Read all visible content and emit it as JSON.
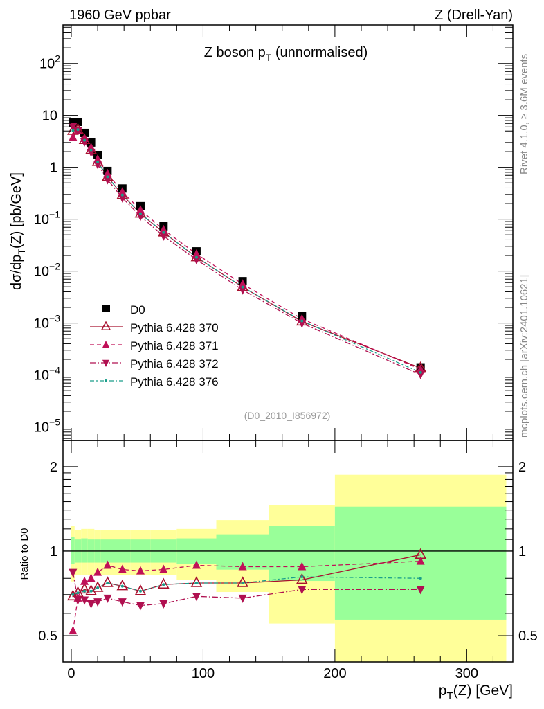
{
  "header": {
    "left": "1960 GeV ppbar",
    "right": "Z (Drell-Yan)"
  },
  "side_text": {
    "rivet": "Rivet 4.1.0, ≥ 3.6M events",
    "mcplots": "mcplots.cern.ch [arXiv:2401.10621]"
  },
  "watermark": "(D0_2010_I856972)",
  "colors": {
    "data": "#000000",
    "p370": "#a8102e",
    "p371": "#c01058",
    "p372": "#b01050",
    "p376": "#1a9e8a",
    "band_total": "#ffff99",
    "band_stat": "#99ff99"
  },
  "chart_data": [
    {
      "type": "line",
      "panel": "main",
      "title": {
        "main": "Z boson p",
        "sub": "T",
        "rest": " (unnormalised)"
      },
      "ylabel": {
        "a": "dσ/dp",
        "sub": "T",
        "b": "(Z) [pb/GeV]"
      },
      "yscale": "log",
      "ylim": [
        5.5e-06,
        553
      ],
      "xlim": [
        -6.3,
        335
      ],
      "yticks": [
        {
          "v": 1e-05,
          "base": "10",
          "exp": "−5"
        },
        {
          "v": 0.0001,
          "base": "10",
          "exp": "−4"
        },
        {
          "v": 0.001,
          "base": "10",
          "exp": "−3"
        },
        {
          "v": 0.01,
          "base": "10",
          "exp": "−2"
        },
        {
          "v": 0.1,
          "base": "10",
          "exp": "−1"
        },
        {
          "v": 1,
          "base": "1",
          "exp": ""
        },
        {
          "v": 10,
          "base": "10",
          "exp": ""
        },
        {
          "v": 100,
          "base": "10",
          "exp": "2"
        }
      ],
      "legend_position": "lower-left",
      "x": [
        1.25,
        5,
        10,
        15,
        20,
        27.5,
        38.75,
        52.5,
        70,
        95,
        130,
        175,
        265
      ],
      "series": [
        {
          "key": "d0",
          "name": "D0",
          "style": "square",
          "values": [
            7.3,
            7.5,
            4.6,
            3.0,
            1.72,
            0.85,
            0.39,
            0.178,
            0.073,
            0.024,
            0.0064,
            0.00136,
            0.00014
          ]
        },
        {
          "key": "p370",
          "name": "Pythia 6.428 370",
          "style": "open-up",
          "dash": "",
          "values": [
            5.04,
            5.33,
            3.36,
            2.16,
            1.27,
            0.655,
            0.293,
            0.128,
            0.0555,
            0.0185,
            0.00493,
            0.00107,
            0.000136
          ]
        },
        {
          "key": "p371",
          "name": "Pythia 6.428 371",
          "style": "filled-up",
          "dash": "6,4",
          "values": [
            3.8,
            5.1,
            3.59,
            2.4,
            1.44,
            0.757,
            0.335,
            0.151,
            0.0628,
            0.0214,
            0.00563,
            0.0012,
            0.000129
          ]
        },
        {
          "key": "p372",
          "name": "Pythia 6.428 372",
          "style": "filled-down",
          "dash": "8,3,2,3",
          "values": [
            6.13,
            5.03,
            3.08,
            1.95,
            1.14,
            0.578,
            0.257,
            0.114,
            0.0475,
            0.0166,
            0.00435,
            0.00099,
            0.000102
          ]
        },
        {
          "key": "p376",
          "name": "Pythia 6.428 376",
          "style": "dot",
          "dash": "6,3,2,3",
          "values": [
            5.11,
            5.33,
            3.31,
            2.16,
            1.27,
            0.655,
            0.293,
            0.128,
            0.0555,
            0.0185,
            0.00493,
            0.0011,
            0.000112
          ]
        }
      ]
    },
    {
      "type": "line",
      "panel": "ratio",
      "ylabel": "Ratio to D0",
      "xlabel": {
        "a": "p",
        "sub": "T",
        "b": "(Z) [GeV]"
      },
      "yscale": "log",
      "ylim": [
        0.403,
        2.48
      ],
      "xlim": [
        -6.3,
        335
      ],
      "yticks": [
        {
          "v": 0.5,
          "label": "0.5"
        },
        {
          "v": 1,
          "label": "1"
        },
        {
          "v": 2,
          "label": "2"
        }
      ],
      "xticks": [
        {
          "v": 0,
          "label": "0"
        },
        {
          "v": 100,
          "label": "100"
        },
        {
          "v": 200,
          "label": "200"
        },
        {
          "v": 300,
          "label": "300"
        }
      ],
      "bins": [
        [
          0,
          2.5
        ],
        [
          2.5,
          7.5
        ],
        [
          7.5,
          12.5
        ],
        [
          12.5,
          17.5
        ],
        [
          17.5,
          22.5
        ],
        [
          22.5,
          32.5
        ],
        [
          32.5,
          45
        ],
        [
          45,
          60
        ],
        [
          60,
          80
        ],
        [
          80,
          110
        ],
        [
          110,
          150
        ],
        [
          150,
          200
        ],
        [
          200,
          330
        ]
      ],
      "band_total": [
        [
          0.78,
          1.23
        ],
        [
          0.82,
          1.19
        ],
        [
          0.82,
          1.2
        ],
        [
          0.82,
          1.2
        ],
        [
          0.82,
          1.19
        ],
        [
          0.82,
          1.19
        ],
        [
          0.82,
          1.19
        ],
        [
          0.82,
          1.19
        ],
        [
          0.82,
          1.19
        ],
        [
          0.79,
          1.2
        ],
        [
          0.715,
          1.29
        ],
        [
          0.552,
          1.455
        ],
        [
          0.33,
          1.87
        ]
      ],
      "band_stat": [
        [
          0.9,
          1.12
        ],
        [
          0.91,
          1.1
        ],
        [
          0.91,
          1.11
        ],
        [
          0.91,
          1.1
        ],
        [
          0.91,
          1.1
        ],
        [
          0.91,
          1.1
        ],
        [
          0.91,
          1.1
        ],
        [
          0.91,
          1.1
        ],
        [
          0.91,
          1.1
        ],
        [
          0.9,
          1.11
        ],
        [
          0.859,
          1.148
        ],
        [
          0.783,
          1.227
        ],
        [
          0.57,
          1.44
        ]
      ],
      "x": [
        1.25,
        5,
        10,
        15,
        20,
        27.5,
        38.75,
        52.5,
        70,
        95,
        130,
        175,
        265
      ],
      "series": [
        {
          "key": "p370",
          "style": "open-up",
          "dash": "",
          "values": [
            0.69,
            0.71,
            0.73,
            0.72,
            0.74,
            0.77,
            0.75,
            0.72,
            0.76,
            0.77,
            0.77,
            0.79,
            0.97
          ]
        },
        {
          "key": "p371",
          "style": "filled-up",
          "dash": "6,4",
          "values": [
            0.52,
            0.68,
            0.78,
            0.8,
            0.84,
            0.89,
            0.86,
            0.85,
            0.86,
            0.89,
            0.88,
            0.88,
            0.92
          ]
        },
        {
          "key": "p372",
          "style": "filled-down",
          "dash": "8,3,2,3",
          "values": [
            0.84,
            0.67,
            0.67,
            0.65,
            0.66,
            0.68,
            0.66,
            0.64,
            0.65,
            0.69,
            0.68,
            0.73,
            0.73
          ]
        },
        {
          "key": "p376",
          "style": "dot",
          "dash": "6,3,2,3",
          "values": [
            0.7,
            0.71,
            0.72,
            0.72,
            0.74,
            0.77,
            0.75,
            0.72,
            0.76,
            0.77,
            0.77,
            0.81,
            0.8
          ]
        }
      ]
    }
  ]
}
